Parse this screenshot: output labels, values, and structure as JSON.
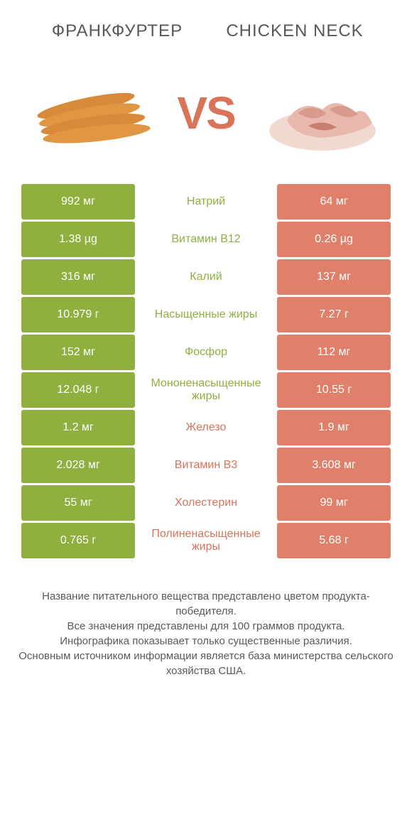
{
  "colors": {
    "green": "#8fb03f",
    "orange": "#e0806a",
    "orange_text": "#d9735a",
    "text": "#5a5a5a",
    "white": "#ffffff",
    "background": "#ffffff"
  },
  "header": {
    "left": "Франкфуртер",
    "right": "CHICKEN NECK",
    "vs": "VS"
  },
  "rows": [
    {
      "left": "992 мг",
      "label": "Натрий",
      "right": "64 мг",
      "winner": "left"
    },
    {
      "left": "1.38 µg",
      "label": "Витамин B12",
      "right": "0.26 µg",
      "winner": "left"
    },
    {
      "left": "316 мг",
      "label": "Калий",
      "right": "137 мг",
      "winner": "left"
    },
    {
      "left": "10.979 г",
      "label": "Насыщенные жиры",
      "right": "7.27 г",
      "winner": "left"
    },
    {
      "left": "152 мг",
      "label": "Фосфор",
      "right": "112 мг",
      "winner": "left"
    },
    {
      "left": "12.048 г",
      "label": "Мононенасыщенные жиры",
      "right": "10.55 г",
      "winner": "left"
    },
    {
      "left": "1.2 мг",
      "label": "Железо",
      "right": "1.9 мг",
      "winner": "right"
    },
    {
      "left": "2.028 мг",
      "label": "Витамин B3",
      "right": "3.608 мг",
      "winner": "right"
    },
    {
      "left": "55 мг",
      "label": "Холестерин",
      "right": "99 мг",
      "winner": "right"
    },
    {
      "left": "0.765 г",
      "label": "Полиненасыщенные жиры",
      "right": "5.68 г",
      "winner": "right"
    }
  ],
  "footer": {
    "line1": "Название питательного вещества представлено цветом продукта-победителя.",
    "line2": "Все значения представлены для 100 граммов продукта.",
    "line3": "Инфографика показывает только существенные различия.",
    "line4": "Основным источником информации является база министерства сельского хозяйства США."
  }
}
